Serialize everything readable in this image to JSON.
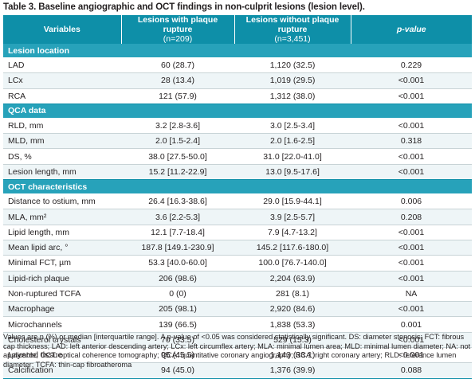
{
  "title": "Table 3. Baseline angiographic and OCT findings in non-culprit lesions (lesion level).",
  "header": {
    "col1": "Variables",
    "col2_line1": "Lesions with plaque rupture",
    "col2_line2": "(n=209)",
    "col3_line1": "Lesions without plaque rupture",
    "col3_line2": "(n=3,451)",
    "col4": "p-value"
  },
  "sections": [
    {
      "name": "Lesion location",
      "rows": [
        {
          "label": "LAD",
          "with": "60 (28.7)",
          "without": "1,120 (32.5)",
          "p": "0.229"
        },
        {
          "label": "LCx",
          "with": "28 (13.4)",
          "without": "1,019 (29.5)",
          "p": "<0.001"
        },
        {
          "label": "RCA",
          "with": "121 (57.9)",
          "without": "1,312 (38.0)",
          "p": "<0.001"
        }
      ]
    },
    {
      "name": "QCA data",
      "rows": [
        {
          "label": "RLD, mm",
          "with": "3.2 [2.8-3.6]",
          "without": "3.0 [2.5-3.4]",
          "p": "<0.001"
        },
        {
          "label": "MLD, mm",
          "with": "2.0 [1.5-2.4]",
          "without": "2.0 [1.6-2.5]",
          "p": "0.318"
        },
        {
          "label": "DS, %",
          "with": "38.0 [27.5-50.0]",
          "without": "31.0 [22.0-41.0]",
          "p": "<0.001"
        },
        {
          "label": "Lesion length, mm",
          "with": "15.2 [11.2-22.9]",
          "without": "13.0 [9.5-17.6]",
          "p": "<0.001"
        }
      ]
    },
    {
      "name": "OCT characteristics",
      "rows": [
        {
          "label": "Distance to ostium, mm",
          "with": "26.4 [16.3-38.6]",
          "without": "29.0 [15.9-44.1]",
          "p": "0.006"
        },
        {
          "label": "MLA, mm²",
          "with": "3.6 [2.2-5.3]",
          "without": "3.9 [2.5-5.7]",
          "p": "0.208"
        },
        {
          "label": "Lipid length, mm",
          "with": "12.1 [7.7-18.4]",
          "without": "7.9 [4.7-13.2]",
          "p": "<0.001"
        },
        {
          "label": "Mean lipid arc, °",
          "with": "187.8 [149.1-230.9]",
          "without": "145.2 [117.6-180.0]",
          "p": "<0.001"
        },
        {
          "label": "Minimal FCT, µm",
          "with": "53.3 [40.0-60.0]",
          "without": "100.0 [76.7-140.0]",
          "p": "<0.001"
        },
        {
          "label": "Lipid-rich plaque",
          "with": "206 (98.6)",
          "without": "2,204 (63.9)",
          "p": "<0.001"
        },
        {
          "label": "Non-ruptured TCFA",
          "with": "0 (0)",
          "without": "281 (8.1)",
          "p": "NA"
        },
        {
          "label": "Macrophage",
          "with": "205 (98.1)",
          "without": "2,920 (84.6)",
          "p": "<0.001"
        },
        {
          "label": "Microchannels",
          "with": "139 (66.5)",
          "without": "1,838 (53.3)",
          "p": "0.001"
        },
        {
          "label": "Cholesterol crystals",
          "with": "70 (33.5)",
          "without": "529 (15.3)",
          "p": "<0.001"
        },
        {
          "label": "Layered tissue",
          "with": "95 (45.5)",
          "without": "1,143 (33.1)",
          "p": "<0.001"
        },
        {
          "label": "Calcification",
          "with": "94 (45.0)",
          "without": "1,376 (39.9)",
          "p": "0.088"
        }
      ]
    }
  ],
  "footnote": "Values are n (%) or median [interquartile range]. A p-value of <0.05 was considered statistically significant. DS: diameter stenosis; FCT: fibrous cap thickness; LAD: left anterior descending artery; LCx: left circumflex artery; MLA: minimal lumen area; MLD: minimal lumen diameter; NA: not applicable; OCT: optical coherence tomography; QCA: quantitative coronary angiography; RCA: right coronary artery; RLD: reference lumen diameter; TCFA: thin-cap fibroatheroma"
}
